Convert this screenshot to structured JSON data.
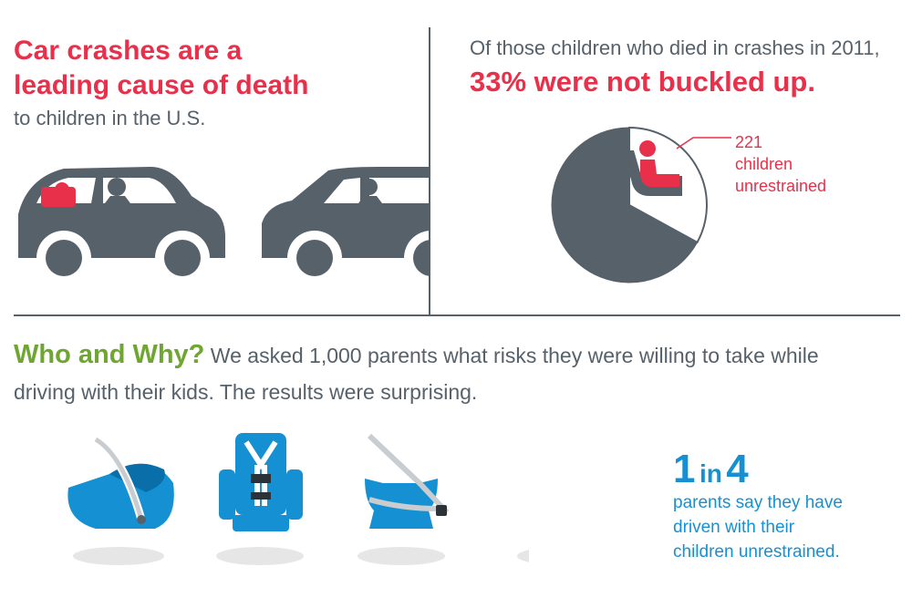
{
  "left_panel": {
    "headline_line1": "Car crashes are a",
    "headline_line2": "leading cause of death",
    "subline": "to children in the U.S."
  },
  "right_panel": {
    "intro": "Of those children who died in crashes in 2011,",
    "stat": "33% were not buckled up.",
    "pie_label_line1": "221",
    "pie_label_line2": "children",
    "pie_label_line3": "unrestrained",
    "unrestrained_share": 0.33
  },
  "who_why": {
    "heading": "Who and Why?",
    "text_line1": "We asked 1,000 parents what risks they were willing to take while",
    "text_line2": "driving with their kids. The results were surprising."
  },
  "stat_box": {
    "big_num1": "1",
    "in_word": "in",
    "big_num2": "4",
    "line1": "parents say they have",
    "line2": "driven with their",
    "line3": "children unrestrained."
  },
  "colors": {
    "red": "#e8304a",
    "slate": "#56616a",
    "green": "#6fa631",
    "blue": "#1591d3"
  },
  "icons": [
    "car-icon",
    "child-in-seat-icon",
    "infant-carrier-icon",
    "harness-seat-icon",
    "booster-seat-icon"
  ]
}
